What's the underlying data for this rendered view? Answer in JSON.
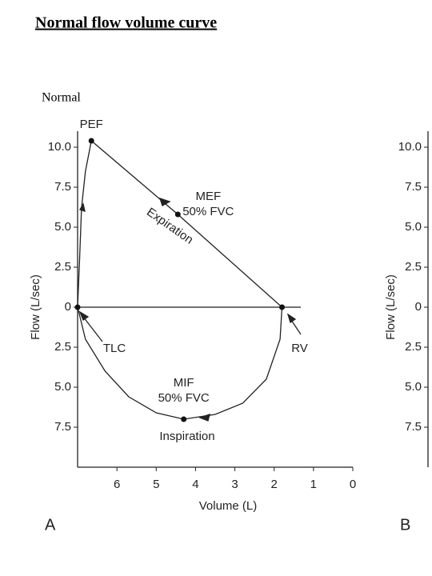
{
  "page": {
    "title": "Normal flow volume curve",
    "label": "Normal"
  },
  "chart_data": [
    {
      "type": "line",
      "panel": "A",
      "xlabel": "Volume (L)",
      "ylabel": "Flow (L/sec)",
      "xlim": [
        7,
        0
      ],
      "xticks": [
        6,
        5,
        4,
        3,
        2,
        1,
        0
      ],
      "ylim": [
        -10,
        11
      ],
      "yticks": [
        {
          "value": 10,
          "label": "10.0"
        },
        7.5,
        {
          "value": 5,
          "label": "5.0"
        },
        2.5,
        0,
        {
          "value": -2.5,
          "label": "2.5"
        },
        {
          "value": -5,
          "label": "5.0"
        },
        {
          "value": -7.5,
          "label": "7.5"
        }
      ],
      "zero_line": true,
      "color": "#222222",
      "series": [
        {
          "name": "Expiration",
          "x": [
            7.0,
            6.95,
            6.9,
            6.8,
            6.65,
            4.45,
            1.8
          ],
          "values": [
            0,
            3.0,
            6.2,
            8.5,
            10.4,
            5.8,
            0
          ]
        },
        {
          "name": "Inspiration",
          "x": [
            1.8,
            1.85,
            2.2,
            2.8,
            3.5,
            4.3,
            5.0,
            5.7,
            6.3,
            6.8,
            7.0
          ],
          "values": [
            0,
            -2.0,
            -4.5,
            -6.0,
            -6.7,
            -7.0,
            -6.6,
            -5.6,
            -4.0,
            -2.0,
            0
          ]
        }
      ],
      "points": [
        {
          "label": [
            "PEF"
          ],
          "x": 6.65,
          "y": 10.4
        },
        {
          "label": [
            "MEF",
            "50% FVC"
          ],
          "x": 4.45,
          "y": 5.8
        },
        {
          "label": [
            "RV"
          ],
          "x": 1.8,
          "y": 0
        },
        {
          "label": [
            "TLC"
          ],
          "x": 7.0,
          "y": 0
        },
        {
          "label": [
            "MIF",
            "50% FVC"
          ],
          "x": 4.3,
          "y": -7.0
        }
      ]
    },
    {
      "type": "axis",
      "panel": "B",
      "ylabel": "Flow (L/sec)",
      "ylim": [
        -10,
        11
      ],
      "yticks": [
        {
          "value": 10,
          "label": "10.0"
        },
        7.5,
        {
          "value": 5,
          "label": "5.0"
        },
        2.5,
        0,
        {
          "value": -2.5,
          "label": "2.5"
        },
        {
          "value": -5,
          "label": "5.0"
        },
        {
          "value": -7.5,
          "label": "7.5"
        }
      ]
    }
  ]
}
